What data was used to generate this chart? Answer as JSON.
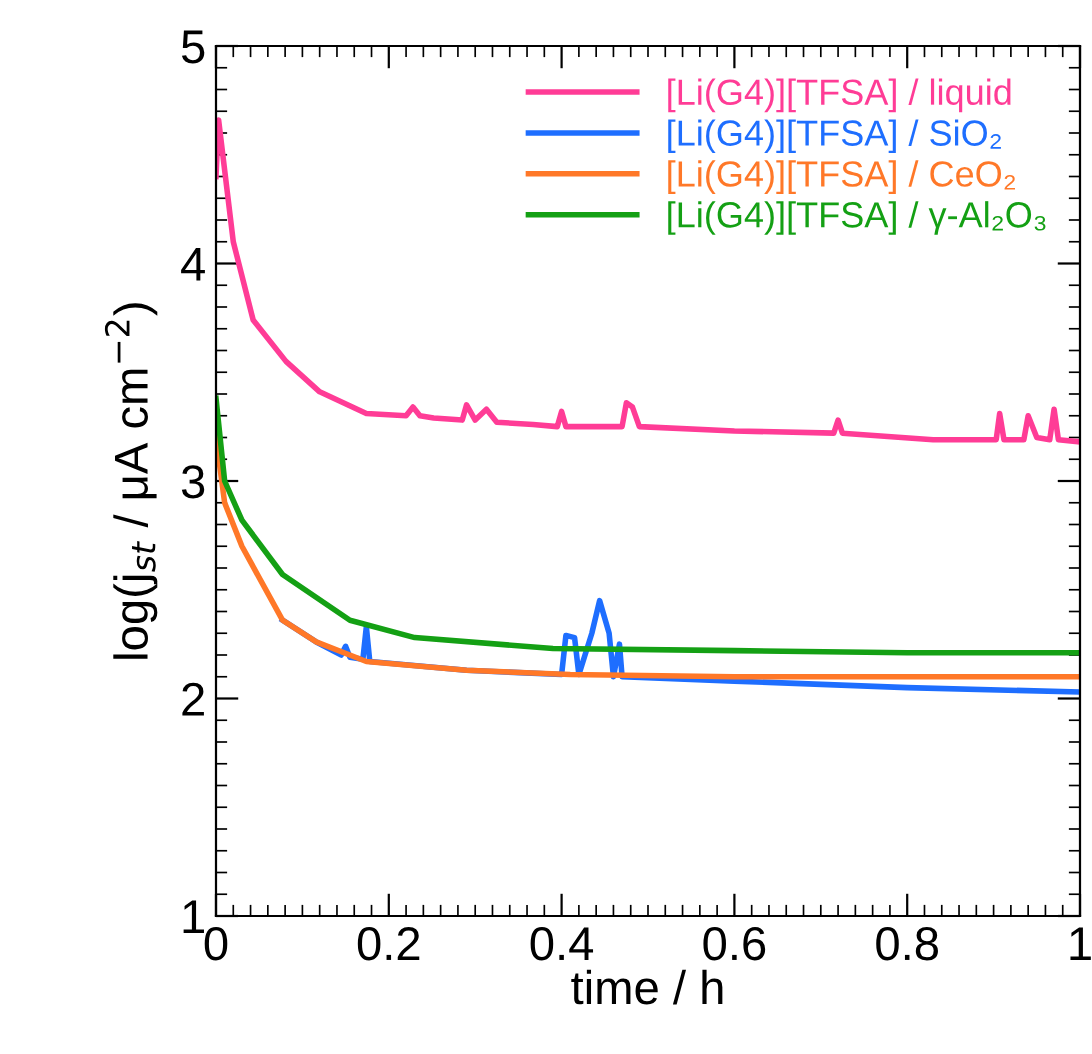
{
  "chart_data": {
    "type": "line",
    "xlabel": "time / h",
    "ylabel": "log(j$_{st}$ / μA cm$^{−2}$)",
    "xlim": [
      0,
      1
    ],
    "ylim": [
      1,
      5
    ],
    "xticks": [
      0,
      0.2,
      0.4,
      0.6,
      0.8,
      1
    ],
    "yticks": [
      1,
      2,
      3,
      4,
      5
    ],
    "grid": false,
    "legend": "top right",
    "marker": "none",
    "line_style": "solid",
    "series": [
      {
        "name": "[Li(G4)][TFSA] / liquid",
        "color": "#ff3c96",
        "x": [
          0,
          0.003,
          0.02,
          0.043,
          0.081,
          0.12,
          0.174,
          0.22,
          0.228,
          0.236,
          0.252,
          0.285,
          0.29,
          0.3,
          0.313,
          0.325,
          0.367,
          0.395,
          0.4,
          0.405,
          0.47,
          0.475,
          0.482,
          0.49,
          0.6,
          0.715,
          0.72,
          0.725,
          0.83,
          0.903,
          0.907,
          0.912,
          0.935,
          0.94,
          0.95,
          0.965,
          0.97,
          0.975,
          1
        ],
        "values": [
          4.4,
          4.66,
          4.1,
          3.74,
          3.55,
          3.41,
          3.31,
          3.3,
          3.34,
          3.3,
          3.29,
          3.28,
          3.35,
          3.28,
          3.33,
          3.27,
          3.26,
          3.25,
          3.32,
          3.25,
          3.25,
          3.36,
          3.34,
          3.25,
          3.23,
          3.22,
          3.28,
          3.22,
          3.19,
          3.19,
          3.31,
          3.19,
          3.19,
          3.3,
          3.2,
          3.19,
          3.33,
          3.19,
          3.18
        ]
      },
      {
        "name": "[Li(G4)][TFSA] / SiO₂",
        "color": "#1e6eff",
        "x": [
          0.077,
          0.116,
          0.145,
          0.15,
          0.155,
          0.17,
          0.174,
          0.178,
          0.29,
          0.4,
          0.405,
          0.415,
          0.42,
          0.435,
          0.444,
          0.455,
          0.46,
          0.467,
          0.47,
          0.6,
          0.8,
          1
        ],
        "values": [
          2.36,
          2.26,
          2.2,
          2.24,
          2.19,
          2.18,
          2.33,
          2.17,
          2.13,
          2.11,
          2.29,
          2.28,
          2.11,
          2.3,
          2.45,
          2.3,
          2.1,
          2.25,
          2.1,
          2.08,
          2.05,
          2.03
        ]
      },
      {
        "name": "[Li(G4)][TFSA] / CeO₂",
        "color": "#ff7828",
        "x": [
          0,
          0.01,
          0.03,
          0.077,
          0.116,
          0.174,
          0.29,
          0.41,
          0.6,
          0.8,
          1
        ],
        "values": [
          3.2,
          2.9,
          2.7,
          2.36,
          2.26,
          2.17,
          2.13,
          2.11,
          2.1,
          2.1,
          2.1
        ]
      },
      {
        "name": "[Li(G4)][TFSA] / γ-Al₂O₃",
        "color": "#14a014",
        "x": [
          0,
          0.01,
          0.03,
          0.077,
          0.155,
          0.23,
          0.39,
          0.6,
          0.8,
          1
        ],
        "values": [
          3.38,
          3.0,
          2.82,
          2.57,
          2.36,
          2.28,
          2.23,
          2.22,
          2.21,
          2.21
        ]
      }
    ]
  }
}
